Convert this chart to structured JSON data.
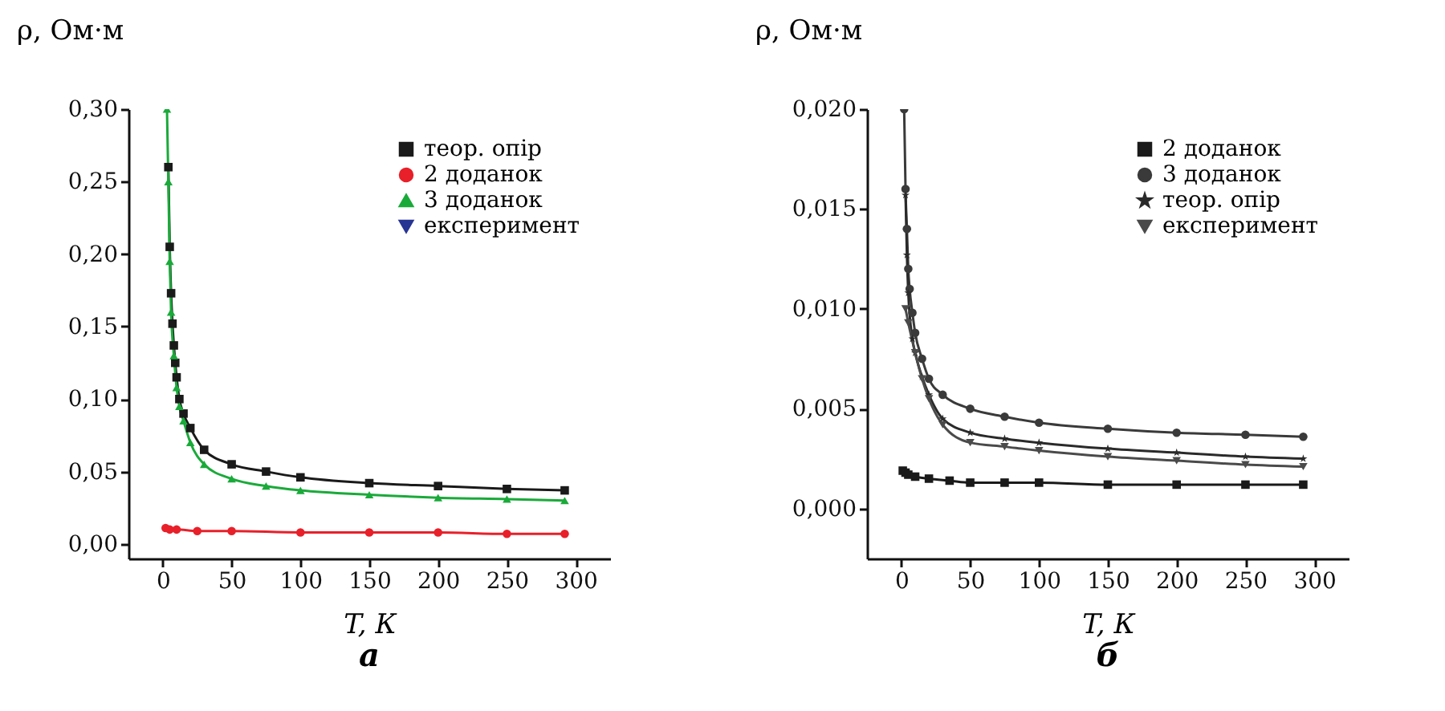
{
  "chart_data": [
    {
      "type": "line",
      "title": "а",
      "xlabel": "T, К",
      "ylabel": "ρ, Ом·м",
      "xlim": [
        -25,
        325
      ],
      "ylim": [
        -0.01,
        0.3
      ],
      "xticks": [
        0,
        50,
        100,
        150,
        200,
        250,
        300
      ],
      "yticks": [
        {
          "value": 0,
          "label": "0,00"
        },
        {
          "value": 0.05,
          "label": "0,05"
        },
        {
          "value": 0.1,
          "label": "0,10"
        },
        {
          "value": 0.15,
          "label": "0,15"
        },
        {
          "value": 0.2,
          "label": "0,20"
        },
        {
          "value": 0.25,
          "label": "0,25"
        },
        {
          "value": 0.3,
          "label": "0,30"
        }
      ],
      "legend": "top right",
      "grid": false,
      "series": [
        {
          "name": "теор. опір",
          "color": "#1a1a1a",
          "marker": "square",
          "x": [
            4,
            5,
            6,
            7,
            8,
            9,
            10,
            12,
            15,
            20,
            30,
            50,
            75,
            100,
            150,
            200,
            250,
            292
          ],
          "values": [
            0.26,
            0.205,
            0.173,
            0.152,
            0.137,
            0.125,
            0.115,
            0.1,
            0.09,
            0.08,
            0.065,
            0.055,
            0.05,
            0.046,
            0.042,
            0.04,
            0.038,
            0.037
          ]
        },
        {
          "name": "2 доданок",
          "color": "#e8202a",
          "marker": "circle",
          "x": [
            2,
            5,
            10,
            25,
            50,
            100,
            150,
            200,
            250,
            292
          ],
          "values": [
            0.011,
            0.01,
            0.01,
            0.009,
            0.009,
            0.008,
            0.008,
            0.008,
            0.007,
            0.007
          ]
        },
        {
          "name": "3 доданок",
          "color": "#1aaa3a",
          "marker": "triangle",
          "x": [
            3,
            4,
            5,
            6,
            8,
            10,
            12,
            15,
            20,
            30,
            50,
            75,
            100,
            150,
            200,
            250,
            292
          ],
          "values": [
            0.3,
            0.25,
            0.195,
            0.16,
            0.13,
            0.108,
            0.095,
            0.085,
            0.07,
            0.055,
            0.045,
            0.04,
            0.037,
            0.034,
            0.032,
            0.031,
            0.03
          ]
        },
        {
          "name": "експеримент",
          "color": "#283593",
          "marker": "triangle-down"
        }
      ]
    },
    {
      "type": "line",
      "title": "б",
      "xlabel": "T, К",
      "ylabel": "ρ, Ом·м",
      "xlim": [
        -25,
        325
      ],
      "ylim": [
        -0.0025,
        0.02
      ],
      "xticks": [
        0,
        50,
        100,
        150,
        200,
        250,
        300
      ],
      "yticks": [
        {
          "value": 0,
          "label": "0,000"
        },
        {
          "value": 0.005,
          "label": "0,005"
        },
        {
          "value": 0.01,
          "label": "0,010"
        },
        {
          "value": 0.015,
          "label": "0,015"
        },
        {
          "value": 0.02,
          "label": "0,020"
        }
      ],
      "legend": "top right",
      "grid": false,
      "series": [
        {
          "name": "2 доданок",
          "color": "#1a1a1a",
          "marker": "square",
          "x": [
            1,
            3,
            5,
            10,
            20,
            35,
            50,
            75,
            100,
            150,
            200,
            250,
            292
          ],
          "values": [
            0.0019,
            0.0018,
            0.0017,
            0.0016,
            0.0015,
            0.0014,
            0.0013,
            0.0013,
            0.0013,
            0.0012,
            0.0012,
            0.0012,
            0.0012
          ]
        },
        {
          "name": "3 доданок",
          "color": "#3a3a3a",
          "marker": "circle",
          "x": [
            2,
            3,
            4,
            5,
            6,
            8,
            10,
            15,
            20,
            30,
            50,
            75,
            100,
            150,
            200,
            250,
            292
          ],
          "values": [
            0.02,
            0.016,
            0.014,
            0.012,
            0.011,
            0.0098,
            0.0088,
            0.0075,
            0.0065,
            0.0057,
            0.005,
            0.0046,
            0.0043,
            0.004,
            0.0038,
            0.0037,
            0.0036
          ]
        },
        {
          "name": "теор. опір",
          "color": "#2a2a2a",
          "marker": "star",
          "x": [
            3,
            4,
            5,
            8,
            10,
            15,
            20,
            30,
            50,
            75,
            100,
            150,
            200,
            250,
            292
          ],
          "values": [
            0.0157,
            0.0127,
            0.0108,
            0.0085,
            0.0078,
            0.0066,
            0.0057,
            0.0045,
            0.0038,
            0.0035,
            0.0033,
            0.003,
            0.0028,
            0.0026,
            0.0025
          ]
        },
        {
          "name": "експеримент",
          "color": "#4a4a4a",
          "marker": "triangle-down",
          "x": [
            3,
            5,
            10,
            15,
            20,
            30,
            50,
            75,
            100,
            150,
            200,
            250,
            292
          ],
          "values": [
            0.01,
            0.0093,
            0.0078,
            0.0065,
            0.0055,
            0.0042,
            0.0033,
            0.0031,
            0.0029,
            0.0026,
            0.0024,
            0.0022,
            0.0021
          ]
        }
      ]
    }
  ]
}
